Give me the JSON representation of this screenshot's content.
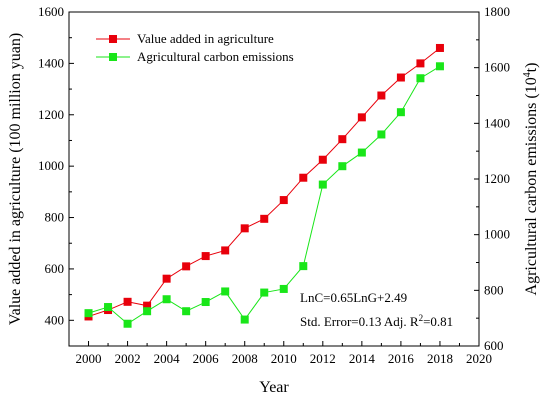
{
  "chart_data": {
    "type": "line",
    "x": [
      2000,
      2001,
      2002,
      2003,
      2004,
      2005,
      2006,
      2007,
      2008,
      2009,
      2010,
      2011,
      2012,
      2013,
      2014,
      2015,
      2016,
      2017,
      2018
    ],
    "series": [
      {
        "name": "Value added in agriculture",
        "axis": "left",
        "color": "#e8000b",
        "marker": "square",
        "values": [
          415,
          440,
          472,
          457,
          562,
          610,
          650,
          672,
          758,
          795,
          868,
          955,
          1025,
          1105,
          1190,
          1275,
          1345,
          1400,
          1460
        ]
      },
      {
        "name": "Agricultural carbon emissions",
        "axis": "right",
        "color": "#19e619",
        "marker": "square",
        "values": [
          718,
          740,
          680,
          725,
          768,
          725,
          758,
          796,
          695,
          792,
          805,
          887,
          1180,
          1246,
          1295,
          1360,
          1440,
          1562,
          1605
        ]
      }
    ],
    "xlabel": "Year",
    "ylabel_left": "Value added in agriculture (100 million yuan)",
    "ylabel_right_prefix": "Agricultural carbon emissions (10",
    "ylabel_right_sup": "4",
    "ylabel_right_suffix": "t)",
    "xlim": [
      1999,
      2020
    ],
    "ylim_left": [
      300,
      1600
    ],
    "ylim_right": [
      600,
      1800
    ],
    "xticks": [
      "2000",
      "2002",
      "2004",
      "2006",
      "2008",
      "2010",
      "2012",
      "2014",
      "2016",
      "2018",
      "2020"
    ],
    "yticks_left": [
      "400",
      "600",
      "800",
      "1000",
      "1200",
      "1400",
      "1600"
    ],
    "yticks_right": [
      "600",
      "800",
      "1000",
      "1200",
      "1400",
      "1600",
      "1800"
    ],
    "legend_position": "top-left",
    "grid": false,
    "annotations": {
      "equation": "LnC=0.65LnG+2.49",
      "stats_prefix": "Std. Error=0.13 Adj. R",
      "stats_sup": "2",
      "stats_suffix": "=0.81"
    }
  }
}
